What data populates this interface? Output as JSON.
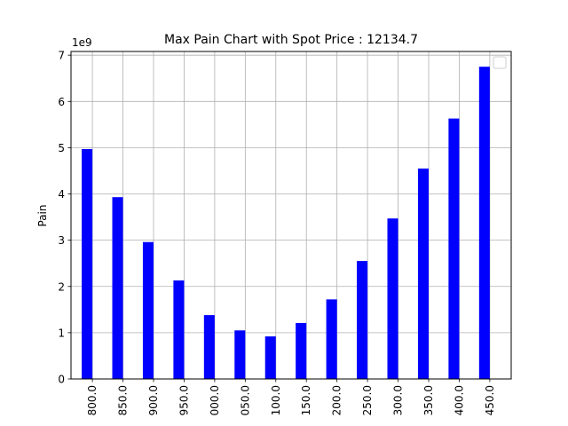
{
  "chart_data": {
    "type": "bar",
    "title": "Max Pain Chart with Spot Price : 12134.7",
    "xlabel": "",
    "ylabel": "Pain",
    "y_offset_label": "1e9",
    "categories": [
      "800.0",
      "850.0",
      "900.0",
      "950.0",
      "000.0",
      "050.0",
      "100.0",
      "150.0",
      "200.0",
      "250.0",
      "300.0",
      "350.0",
      "400.0",
      "450.0"
    ],
    "values": [
      4.97,
      3.93,
      2.96,
      2.13,
      1.38,
      1.05,
      0.92,
      1.21,
      1.72,
      2.55,
      3.47,
      4.55,
      5.63,
      6.75
    ],
    "ylim": [
      0,
      7.08
    ],
    "yticks": [
      0,
      1,
      2,
      3,
      4,
      5,
      6,
      7
    ],
    "ytick_labels": [
      "0",
      "1",
      "2",
      "3",
      "4",
      "5",
      "6",
      "7"
    ],
    "grid": true,
    "legend": "top-right",
    "bar_color": "#0000ff"
  }
}
